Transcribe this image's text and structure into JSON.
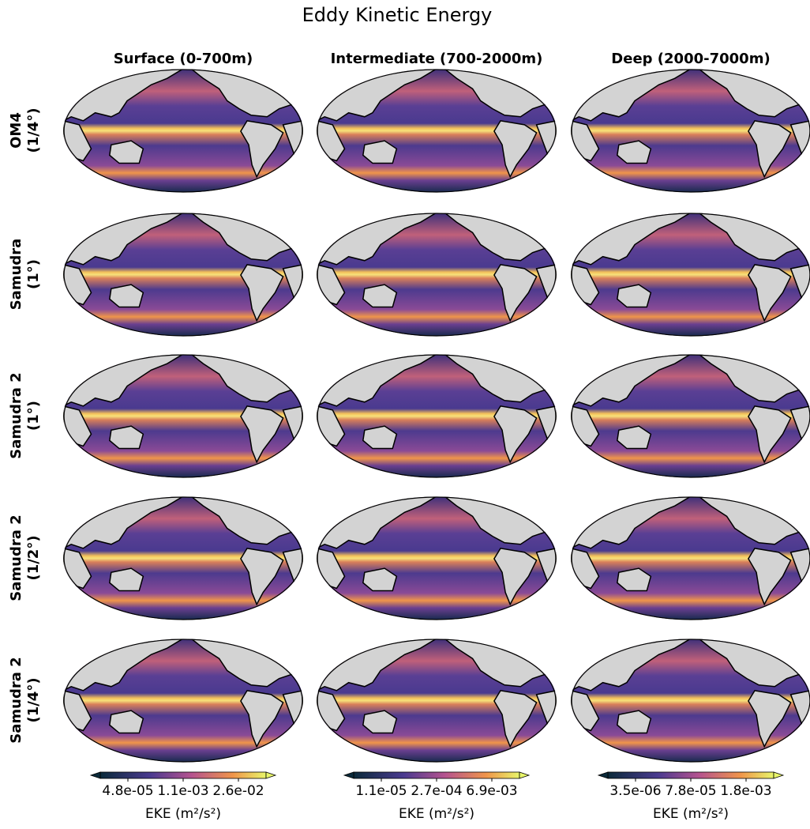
{
  "title": "Eddy Kinetic Energy",
  "columns": [
    "Surface (0-700m)",
    "Intermediate (700-2000m)",
    "Deep (2000-7000m)"
  ],
  "rows": [
    {
      "lines": [
        "OM4",
        "(1/4°)"
      ]
    },
    {
      "lines": [
        "Samudra",
        "(1°)"
      ]
    },
    {
      "lines": [
        "Samudra 2",
        "(1°)"
      ]
    },
    {
      "lines": [
        "Samudra 2",
        "(1/2°)"
      ]
    },
    {
      "lines": [
        "Samudra 2",
        "(1/4°)"
      ]
    }
  ],
  "colorbars": [
    {
      "ticks": [
        "4.8e-05",
        "1.1e-03",
        "2.6e-02"
      ],
      "label": "EKE (m²/s²)"
    },
    {
      "ticks": [
        "1.1e-05",
        "2.7e-04",
        "6.9e-03"
      ],
      "label": "EKE (m²/s²)"
    },
    {
      "ticks": [
        "3.5e-06",
        "7.8e-05",
        "1.8e-03"
      ],
      "label": "EKE (m²/s²)"
    }
  ]
}
